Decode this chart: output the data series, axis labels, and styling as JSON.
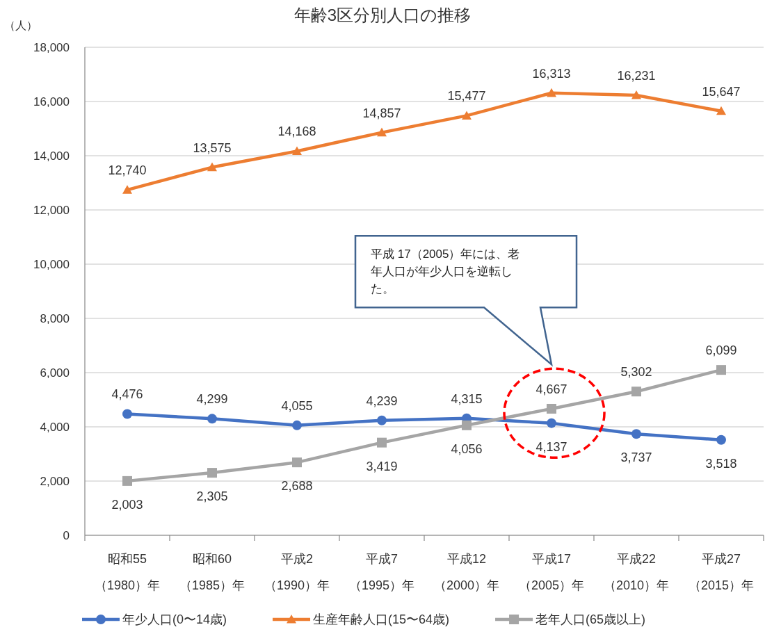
{
  "chart_data": {
    "type": "line",
    "title": "年齢3区分別人口の推移",
    "ylabel": "（人）",
    "categories": [
      "昭和55\n（1980）年",
      "昭和60\n（1985）年",
      "平成2\n（1990）年",
      "平成7\n（1995）年",
      "平成12\n（2000）年",
      "平成17\n（2005）年",
      "平成22\n（2010）年",
      "平成27\n（2015）年"
    ],
    "series": [
      {
        "name": "年少人口(0〜14歳)",
        "color": "#4472c4",
        "marker": "circle",
        "values": [
          4476,
          4299,
          4055,
          4239,
          4315,
          4137,
          3737,
          3518
        ],
        "value_labels": [
          "4,476",
          "4,299",
          "4,055",
          "4,239",
          "4,315",
          "4,137",
          "3,737",
          "3,518"
        ]
      },
      {
        "name": "生産年齢人口(15〜64歳)",
        "color": "#ed7d31",
        "marker": "triangle",
        "values": [
          12740,
          13575,
          14168,
          14857,
          15477,
          16313,
          16231,
          15647
        ],
        "value_labels": [
          "12,740",
          "13,575",
          "14,168",
          "14,857",
          "15,477",
          "16,313",
          "16,231",
          "15,647"
        ]
      },
      {
        "name": "老年人口(65歳以上)",
        "color": "#a5a5a5",
        "marker": "square",
        "values": [
          2003,
          2305,
          2688,
          3419,
          4056,
          4667,
          5302,
          6099
        ],
        "value_labels": [
          "2,003",
          "2,305",
          "2,688",
          "3,419",
          "4,056",
          "4,667",
          "5,302",
          "6,099"
        ]
      }
    ],
    "ylim": [
      0,
      18000
    ],
    "yticks": [
      0,
      {
        "value": 2000,
        "label": "2,000"
      },
      {
        "value": 4000,
        "label": "4,000"
      },
      {
        "value": 6000,
        "label": "6,000"
      },
      {
        "value": 8000,
        "label": "8,000"
      },
      {
        "value": 10000,
        "label": "10,000"
      },
      {
        "value": 12000,
        "label": "12,000"
      },
      {
        "value": 14000,
        "label": "14,000"
      },
      {
        "value": 16000,
        "label": "16,000"
      },
      {
        "value": 18000,
        "label": "18,000"
      }
    ],
    "grid": "y",
    "legend": "bottom",
    "annotations": [
      "平成 17（2005）年には、老年人口が年少人口を逆転した。"
    ]
  }
}
